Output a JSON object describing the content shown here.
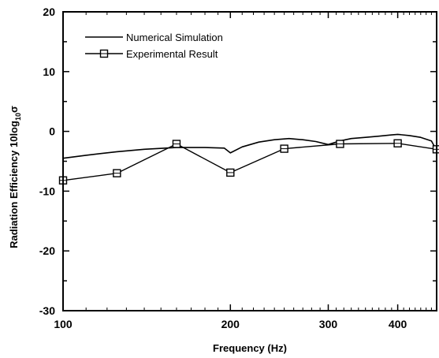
{
  "chart_data": {
    "type": "line",
    "title": "",
    "xlabel": "Frequency (Hz)",
    "ylabel_main": "Radiation Efficiency 10log",
    "ylabel_sub": "10",
    "ylabel_symbol": "σ",
    "xscale": "log",
    "xlim": [
      100,
      470
    ],
    "ylim": [
      -30,
      20
    ],
    "xticks": [
      100,
      200,
      300,
      400
    ],
    "yticks": [
      -30,
      -20,
      -10,
      0,
      10,
      20
    ],
    "legend_position": "top-left",
    "grid": false,
    "series": [
      {
        "name": "Numerical Simulation",
        "marker": "none",
        "x": [
          100,
          110,
          125,
          140,
          160,
          180,
          195,
          200,
          210,
          225,
          240,
          255,
          270,
          285,
          300,
          315,
          330,
          350,
          370,
          390,
          400,
          420,
          440,
          460,
          470
        ],
        "y": [
          -4.5,
          -4.0,
          -3.4,
          -3.0,
          -2.7,
          -2.7,
          -2.8,
          -3.6,
          -2.6,
          -1.8,
          -1.4,
          -1.2,
          -1.4,
          -1.7,
          -2.2,
          -1.6,
          -1.2,
          -1.0,
          -0.8,
          -0.6,
          -0.5,
          -0.7,
          -1.0,
          -1.6,
          -3.2
        ]
      },
      {
        "name": "Experimental Result",
        "marker": "square",
        "x": [
          100,
          125,
          160,
          200,
          250,
          315,
          400,
          470
        ],
        "y": [
          -8.2,
          -7.0,
          -2.1,
          -6.9,
          -2.9,
          -2.1,
          -2.0,
          -3.0
        ]
      }
    ]
  }
}
